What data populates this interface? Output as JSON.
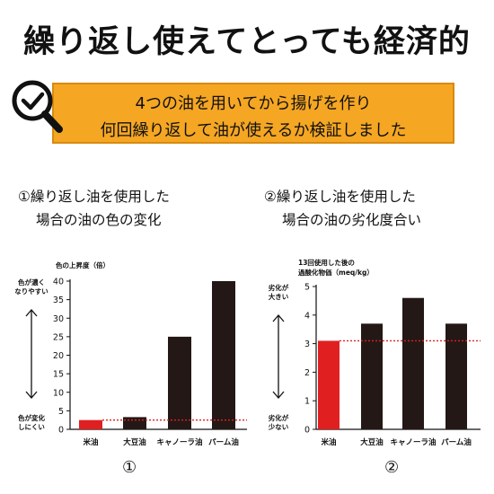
{
  "title": "繰り返し使えてとっても経済的",
  "banner": {
    "line1": "4つの油を用いてから揚げを作り",
    "line2": "何回繰り返して油が使えるか検証しました"
  },
  "icon": "magnifier-check-icon",
  "colors": {
    "accent": "#f5a623",
    "rice_oil_bar": "#e02020",
    "other_bars": "#231815",
    "reference_line": "#e02020"
  },
  "sections": [
    {
      "title_line1": "①繰り返し油を使用した",
      "title_line2": "場合の油の色の変化",
      "number": "①"
    },
    {
      "title_line1": "②繰り返し油を使用した",
      "title_line2": "場合の油の劣化度合い",
      "number": "②"
    }
  ],
  "chart_data": [
    {
      "type": "bar",
      "ylabel": "色の上昇度（倍）",
      "categories": [
        "米油",
        "大豆油",
        "キャノーラ油",
        "パーム油"
      ],
      "values": [
        2.5,
        3.3,
        25,
        40
      ],
      "ylim": [
        0,
        40
      ],
      "yticks": [
        0,
        5,
        10,
        15,
        20,
        25,
        30,
        35,
        40
      ],
      "reference_line": 2.5,
      "highlight_index": 0,
      "annotation_top": [
        "色が濃く",
        "なりやすい"
      ],
      "annotation_bottom": [
        "色が変化",
        "しにくい"
      ]
    },
    {
      "type": "bar",
      "ylabel_line1": "13回使用した後の",
      "ylabel_line2": "過酸化物価（meq/kg）",
      "categories": [
        "米油",
        "大豆油",
        "キャノーラ油",
        "パーム油"
      ],
      "values": [
        3.1,
        3.7,
        4.6,
        3.7
      ],
      "ylim": [
        0,
        5
      ],
      "yticks": [
        0,
        1,
        2,
        3,
        4,
        5
      ],
      "reference_line": 3.1,
      "highlight_index": 0,
      "annotation_top": [
        "劣化が",
        "大きい"
      ],
      "annotation_bottom": [
        "劣化が",
        "少ない"
      ]
    }
  ]
}
